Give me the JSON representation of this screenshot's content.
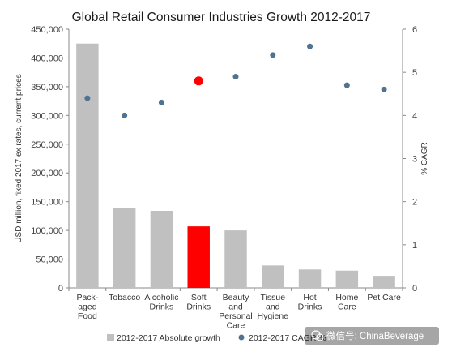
{
  "chart_data": {
    "type": "bar",
    "title": "Global Retail Consumer Industries Growth 2012-2017",
    "ylabel": "USD million, fixed 2017 ex rates, current prices",
    "y2label": "% CAGR",
    "categories": [
      [
        "Pack-",
        "aged",
        "Food"
      ],
      [
        "Tobacco"
      ],
      [
        "Alcoholic",
        "Drinks"
      ],
      [
        "Soft",
        "Drinks"
      ],
      [
        "Beauty",
        "and",
        "Personal",
        "Care"
      ],
      [
        "Tissue",
        "and",
        "Hygiene"
      ],
      [
        "Hot",
        "Drinks"
      ],
      [
        "Home",
        "Care"
      ],
      [
        "Pet Care"
      ]
    ],
    "ylim": [
      0,
      450000
    ],
    "yticks": [
      "0",
      "50,000",
      "100,000",
      "150,000",
      "200,000",
      "250,000",
      "300,000",
      "350,000",
      "400,000",
      "450,000"
    ],
    "y2lim": [
      0,
      6
    ],
    "y2ticks": [
      "0",
      "1",
      "2",
      "3",
      "4",
      "5",
      "6"
    ],
    "highlight_index": 3,
    "series": [
      {
        "name": "2012-2017 Absolute growth",
        "kind": "bar",
        "axis": "left",
        "values": [
          425000,
          139000,
          134000,
          107000,
          100000,
          39000,
          32000,
          30000,
          21000
        ]
      },
      {
        "name": "2012-2017 CAGR %",
        "kind": "scatter",
        "axis": "right",
        "values": [
          4.4,
          4.0,
          4.3,
          4.8,
          4.9,
          5.4,
          5.6,
          4.7,
          4.6
        ]
      }
    ],
    "legend_position": "bottom",
    "grid": false
  },
  "colors": {
    "bar": "#c0c0c0",
    "highlight": "#ff0000",
    "point": "#4f7391",
    "axis": "#888888"
  },
  "legend": {
    "bar_label": "2012-2017 Absolute growth",
    "point_label": "2012-2017 CAGR %"
  },
  "watermark": {
    "text": "微信号: ChinaBeverage"
  }
}
